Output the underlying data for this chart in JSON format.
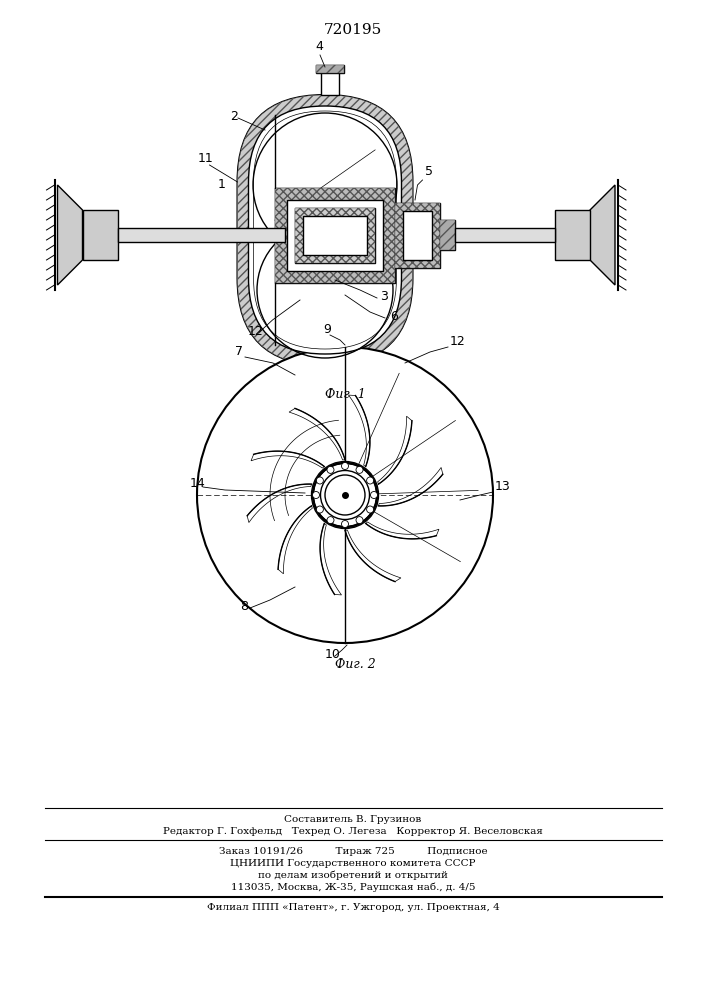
{
  "patent_number": "720195",
  "fig1_label": "Фиг. 1",
  "fig2_label": "Фиг. 2",
  "footer_line1": "Составитель В. Грузинов",
  "footer_line2": "Редактор Г. Гохфельд   Техред О. Легеза   Корректор Я. Веселовская",
  "footer_line3": "Заказ 10191/26          Тираж 725          Подписное",
  "footer_line4": "ЦНИИПИ Государственного комитета СССР",
  "footer_line5": "по делам изобретений и открытий",
  "footer_line6": "113035, Москва, Ж-35, Раушская наб., д. 4/5",
  "footer_line7": "Филиал ППП «Патент», г. Ужгород, ул. Проектная, 4",
  "bg_color": "#ffffff",
  "drawing_color": "#000000"
}
